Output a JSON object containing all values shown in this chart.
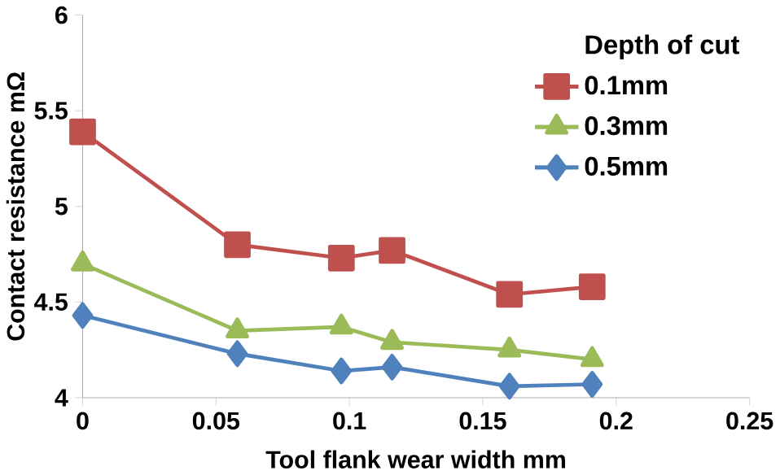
{
  "chart_data": {
    "type": "line",
    "xlabel": "Tool flank wear width mm",
    "ylabel": "Contact  resistance mΩ",
    "legend_title": "Depth of cut",
    "legend": "top right",
    "grid": false,
    "x": [
      0,
      0.058,
      0.097,
      0.116,
      0.16,
      0.191
    ],
    "xlim": [
      0,
      0.25
    ],
    "xticks": [
      0,
      0.05,
      0.1,
      0.15,
      0.2,
      0.25
    ],
    "ylim": [
      4,
      6
    ],
    "yticks": [
      4,
      4.5,
      5,
      5.5,
      6
    ],
    "series": [
      {
        "name": "0.1mm",
        "color": "#c0504d",
        "marker": "square",
        "values": [
          5.39,
          4.8,
          4.73,
          4.77,
          4.54,
          4.58
        ]
      },
      {
        "name": "0.3mm",
        "color": "#9bbb59",
        "marker": "triangle",
        "values": [
          4.7,
          4.35,
          4.37,
          4.29,
          4.25,
          4.2
        ]
      },
      {
        "name": "0.5mm",
        "color": "#4f81bd",
        "marker": "diamond",
        "values": [
          4.43,
          4.23,
          4.14,
          4.16,
          4.06,
          4.07
        ]
      }
    ]
  }
}
